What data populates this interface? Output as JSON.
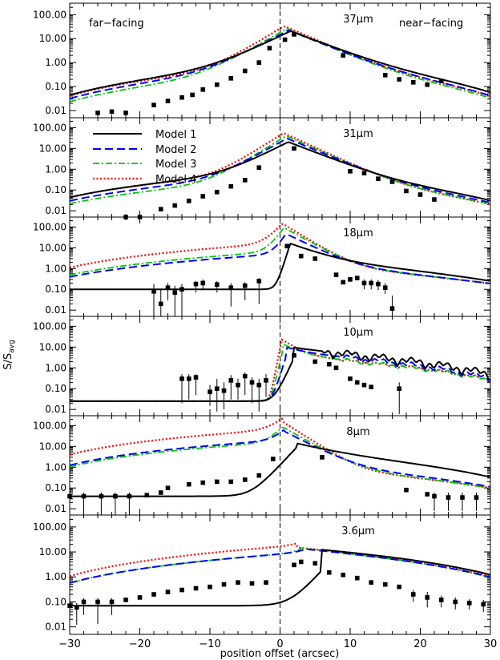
{
  "figure": {
    "annotations": {
      "left": "far−facing",
      "right": "near−facing"
    },
    "ylabel": "S/S",
    "ylabel_sub": "avg",
    "xlabel": "position offset (arcsec)",
    "ytick_labels": [
      "100.00",
      "10.00",
      "1.00",
      "0.10",
      "0.01"
    ],
    "xtick_labels": [
      "−30",
      "−20",
      "−10",
      "0",
      "10",
      "20",
      "30"
    ]
  },
  "chart_data": {
    "type": "line",
    "scale": "log-y",
    "xlim": [
      -30,
      30
    ],
    "ylim": [
      0.005,
      300
    ],
    "legend": [
      {
        "name": "Model 1",
        "color": "#000000",
        "style": "solid"
      },
      {
        "name": "Model 2",
        "color": "#0000ff",
        "style": "dashed"
      },
      {
        "name": "Model 3",
        "color": "#00c800",
        "style": "dash-dot"
      },
      {
        "name": "Model 4",
        "color": "#ff0000",
        "style": "dotted"
      }
    ],
    "panels": [
      {
        "label": "37",
        "unit": "μm",
        "model_params": {
          "m1": {
            "peak": 20,
            "shift": 1.5,
            "wl": 3.0,
            "wr": 3.8,
            "fl": 0.00042,
            "fr": 0.003,
            "base": 0.001
          },
          "m2": {
            "peak": 22,
            "shift": 1.2,
            "wl": 2.8,
            "wr": 3.6,
            "fl": 0.0003,
            "fr": 0.0022,
            "base": 0.001
          },
          "m3": {
            "peak": 26,
            "shift": 1.0,
            "wl": 2.6,
            "wr": 3.4,
            "fl": 0.00022,
            "fr": 0.0018,
            "base": 0.001
          },
          "m4": {
            "peak": 33,
            "shift": 0.6,
            "wl": 2.4,
            "wr": 3.4,
            "fl": 0.0004,
            "fr": 0.0022,
            "base": 0.001
          }
        },
        "obs": [
          {
            "x": -26,
            "y": 0.008
          },
          {
            "x": -24,
            "y": 0.009
          },
          {
            "x": -22,
            "y": 0.008
          },
          {
            "x": -18,
            "y": 0.017
          },
          {
            "x": -16,
            "y": 0.025
          },
          {
            "x": -14,
            "y": 0.035
          },
          {
            "x": -12.5,
            "y": 0.045
          },
          {
            "x": -11,
            "y": 0.075
          },
          {
            "x": -9,
            "y": 0.12
          },
          {
            "x": -7,
            "y": 0.22
          },
          {
            "x": -5,
            "y": 0.45
          },
          {
            "x": -3,
            "y": 1.0
          },
          {
            "x": -1.5,
            "y": 4.0
          },
          {
            "x": 0.7,
            "y": 9.0
          },
          {
            "x": 2,
            "y": 15.0
          },
          {
            "x": 9,
            "y": 2.0
          },
          {
            "x": 15,
            "y": 0.3
          },
          {
            "x": 17,
            "y": 0.2
          },
          {
            "x": 19,
            "y": 0.15
          },
          {
            "x": 21,
            "y": 0.12
          },
          {
            "x": 23,
            "y": 0.17
          }
        ]
      },
      {
        "label": "31",
        "unit": "μm",
        "model_params": {
          "m1": {
            "peak": 20,
            "shift": 1.2,
            "wl": 2.5,
            "wr": 3.3,
            "fl": 0.0004,
            "fr": 0.0016,
            "base": 0.004
          },
          "m2": {
            "peak": 30,
            "shift": 1.0,
            "wl": 2.3,
            "wr": 3.1,
            "fl": 0.00026,
            "fr": 0.0012,
            "base": 0.004
          },
          "m3": {
            "peak": 40,
            "shift": 0.9,
            "wl": 2.1,
            "wr": 2.9,
            "fl": 0.00018,
            "fr": 0.001,
            "base": 0.004
          },
          "m4": {
            "peak": 55,
            "shift": 0.5,
            "wl": 2.0,
            "wr": 2.8,
            "fl": 0.0004,
            "fr": 0.001,
            "base": 0.004
          }
        },
        "obs": [
          {
            "x": -22,
            "y": 0.004
          },
          {
            "x": -20,
            "y": 0.005
          },
          {
            "x": -17,
            "y": 0.012
          },
          {
            "x": -15,
            "y": 0.018
          },
          {
            "x": -13,
            "y": 0.03
          },
          {
            "x": -11,
            "y": 0.05
          },
          {
            "x": -9,
            "y": 0.08
          },
          {
            "x": -7,
            "y": 0.15
          },
          {
            "x": -5,
            "y": 0.3
          },
          {
            "x": -3,
            "y": 1.2
          },
          {
            "x": 2,
            "y": 10.0
          },
          {
            "x": 10,
            "y": 0.8
          },
          {
            "x": 12,
            "y": 0.65
          },
          {
            "x": 14,
            "y": 0.35
          },
          {
            "x": 16,
            "y": 0.25
          },
          {
            "x": 18,
            "y": 0.09
          },
          {
            "x": 20,
            "y": 0.06
          },
          {
            "x": 22,
            "y": 0.035
          }
        ]
      },
      {
        "label": "18",
        "unit": "μm",
        "model_params": {
          "m1": {
            "peak": 14,
            "shift": 1.4,
            "wl": 0.4,
            "wr": 3.2,
            "fl": 0,
            "fr": 0.01,
            "base": 0.1
          },
          "m2": {
            "peak": 45,
            "shift": 0.9,
            "wl": 0.8,
            "wr": 2.6,
            "fl": 0.003,
            "fr": 0.006,
            "base": 0.1
          },
          "m3": {
            "peak": 90,
            "shift": 0.6,
            "wl": 0.9,
            "wr": 2.3,
            "fl": 0.004,
            "fr": 0.006,
            "base": 0.1
          },
          "m4": {
            "peak": 140,
            "shift": 0.4,
            "wl": 1.1,
            "wr": 2.1,
            "fl": 0.01,
            "fr": 0.006,
            "base": 0.1
          }
        },
        "obs": [
          {
            "x": -18,
            "y": 0.08,
            "lo": 0.004,
            "hi": 0.18
          },
          {
            "x": -17,
            "y": 0.02,
            "lo": 0.004,
            "hi": 0.1
          },
          {
            "x": -16,
            "y": 0.12,
            "lo": 0.03,
            "hi": 0.2
          },
          {
            "x": -15,
            "y": 0.07,
            "lo": 0.004,
            "hi": 0.15
          },
          {
            "x": -14,
            "y": 0.1,
            "lo": 0.004,
            "hi": 0.18
          },
          {
            "x": -12,
            "y": 0.18,
            "lo": 0.07,
            "hi": 0.25
          },
          {
            "x": -11,
            "y": 0.2,
            "lo": 0.09,
            "hi": 0.3
          },
          {
            "x": -9,
            "y": 0.17,
            "lo": 0.07,
            "hi": 0.25
          },
          {
            "x": -7,
            "y": 0.12,
            "lo": 0.015,
            "hi": 0.2
          },
          {
            "x": -5,
            "y": 0.15,
            "lo": 0.03,
            "hi": 0.22
          },
          {
            "x": -3,
            "y": 0.25,
            "lo": 0.02,
            "hi": 0.35
          },
          {
            "x": 1,
            "y": 12.0
          },
          {
            "x": 3,
            "y": 4.0
          },
          {
            "x": 5,
            "y": 3.0
          },
          {
            "x": 8,
            "y": 0.5
          },
          {
            "x": 9,
            "y": 0.22
          },
          {
            "x": 10,
            "y": 0.3
          },
          {
            "x": 11,
            "y": 0.35
          },
          {
            "x": 12,
            "y": 0.2,
            "lo": 0.1,
            "hi": 0.3
          },
          {
            "x": 13,
            "y": 0.2,
            "lo": 0.1,
            "hi": 0.3
          },
          {
            "x": 14,
            "y": 0.18,
            "lo": 0.09,
            "hi": 0.28
          },
          {
            "x": 15,
            "y": 0.12,
            "lo": 0.06,
            "hi": 0.2
          },
          {
            "x": 16,
            "y": 0.012,
            "lo": 0.007,
            "hi": 0.05
          }
        ]
      },
      {
        "label": "10",
        "unit": "μm",
        "model_params": {
          "m1": {
            "peak": 3,
            "shift": 2.0,
            "wl": 0.6,
            "wr": 4.2,
            "fl": 0,
            "fr": 0.03,
            "base": 0.025,
            "noise": 0.5,
            "noiseStart": 6
          },
          "m2": {
            "peak": 5,
            "shift": 1.0,
            "wl": 0.4,
            "wr": 3.0,
            "fl": 0,
            "fr": 0.02,
            "base": 0.025,
            "noise": 0.35,
            "noiseStart": 8
          },
          "m3": {
            "peak": 10,
            "shift": 0.5,
            "wl": 0.3,
            "wr": 2.2,
            "fl": 0,
            "fr": 0.015,
            "base": 0.025,
            "noise": 0.25,
            "noiseStart": 8
          },
          "m4": {
            "peak": 20,
            "shift": 0.2,
            "wl": 0.25,
            "wr": 1.8,
            "fl": 0,
            "fr": 0.015,
            "base": 0.025,
            "noise": 0.2,
            "noiseStart": 8
          }
        },
        "obs": [
          {
            "x": -14,
            "y": 0.3,
            "lo": 0.02,
            "hi": 0.5
          },
          {
            "x": -13,
            "y": 0.3,
            "lo": 0.03,
            "hi": 0.5
          },
          {
            "x": -12,
            "y": 0.35,
            "lo": 0.05,
            "hi": 0.5
          },
          {
            "x": -10,
            "y": 0.07,
            "lo": 0.015,
            "hi": 0.15
          },
          {
            "x": -9,
            "y": 0.1,
            "lo": 0.008,
            "hi": 0.3
          },
          {
            "x": -8,
            "y": 0.08,
            "lo": 0.01,
            "hi": 0.2
          },
          {
            "x": -7,
            "y": 0.25,
            "lo": 0.03,
            "hi": 0.45
          },
          {
            "x": -6,
            "y": 0.15,
            "lo": 0.03,
            "hi": 0.3
          },
          {
            "x": -5,
            "y": 0.4,
            "lo": 0.05,
            "hi": 0.6
          },
          {
            "x": -4,
            "y": 0.2,
            "lo": 0.02,
            "hi": 0.35
          },
          {
            "x": -3,
            "y": 0.15,
            "lo": 0.008,
            "hi": 0.3
          },
          {
            "x": -2,
            "y": 0.25,
            "lo": 0.04,
            "hi": 0.5
          },
          {
            "x": 2,
            "y": 4.0
          },
          {
            "x": 5,
            "y": 2.0
          },
          {
            "x": 7,
            "y": 1.5
          },
          {
            "x": 8,
            "y": 1.0
          },
          {
            "x": 10,
            "y": 0.3
          },
          {
            "x": 11,
            "y": 0.2
          },
          {
            "x": 12,
            "y": 0.15
          },
          {
            "x": 13,
            "y": 0.12
          },
          {
            "x": 17,
            "y": 0.1,
            "lo": 0.006,
            "hi": 0.2
          }
        ]
      },
      {
        "label": "8",
        "unit": "μm",
        "model_params": {
          "m1": {
            "peak": 10,
            "shift": 2.5,
            "wl": 1.2,
            "wr": 4.5,
            "fl": 0,
            "fr": 0.018,
            "base": 0.04
          },
          "m2": {
            "peak": 50,
            "shift": 0.7,
            "wl": 1.1,
            "wr": 2.5,
            "fl": 0.012,
            "fr": 0.005,
            "base": 0.04
          },
          "m3": {
            "peak": 80,
            "shift": 0.5,
            "wl": 1.1,
            "wr": 2.3,
            "fl": 0.01,
            "fr": 0.004,
            "base": 0.04
          },
          "m4": {
            "peak": 160,
            "shift": 0.3,
            "wl": 1.3,
            "wr": 2.0,
            "fl": 0.04,
            "fr": 0.004,
            "base": 0.04
          }
        },
        "obs": [
          {
            "x": -30,
            "y": 0.04,
            "lo": 0.004,
            "hi": 0.06
          },
          {
            "x": -28,
            "y": 0.04,
            "lo": 0.004,
            "hi": 0.06
          },
          {
            "x": -25.5,
            "y": 0.04,
            "lo": 0.004,
            "hi": 0.06
          },
          {
            "x": -23.5,
            "y": 0.04,
            "lo": 0.004,
            "hi": 0.06
          },
          {
            "x": -21.5,
            "y": 0.04,
            "lo": 0.004,
            "hi": 0.06
          },
          {
            "x": -19,
            "y": 0.045
          },
          {
            "x": -17,
            "y": 0.06
          },
          {
            "x": -16,
            "y": 0.1
          },
          {
            "x": -13,
            "y": 0.15
          },
          {
            "x": -11,
            "y": 0.18
          },
          {
            "x": -9,
            "y": 0.2
          },
          {
            "x": -7,
            "y": 0.2
          },
          {
            "x": -5,
            "y": 0.25
          },
          {
            "x": -3,
            "y": 0.4
          },
          {
            "x": -1,
            "y": 2.5
          },
          {
            "x": 6,
            "y": 3.0
          },
          {
            "x": 18,
            "y": 0.08
          },
          {
            "x": 21,
            "y": 0.05
          },
          {
            "x": 22,
            "y": 0.04,
            "lo": 0.008,
            "hi": 0.06
          },
          {
            "x": 24,
            "y": 0.035,
            "lo": 0.008,
            "hi": 0.06
          },
          {
            "x": 26,
            "y": 0.035,
            "lo": 0.008,
            "hi": 0.06
          },
          {
            "x": 28,
            "y": 0.035,
            "lo": 0.008,
            "hi": 0.06
          }
        ]
      },
      {
        "label": "3.6",
        "unit": "μm",
        "model_params": {
          "m1": {
            "peak": 1.8,
            "shift": 6.0,
            "wl": 1.4,
            "wr": 12,
            "fl": 0,
            "fr": 0.06,
            "base": 0.07
          },
          "m2": {
            "peak": 3.0,
            "shift": 3.5,
            "wl": 1.3,
            "wr": 9,
            "fl": 0.005,
            "fr": 0.05,
            "base": 0.07
          },
          "m3": {
            "peak": 4.0,
            "shift": 3.0,
            "wl": 1.1,
            "wr": 7.5,
            "fl": 0.005,
            "fr": 0.05,
            "base": 0.07
          },
          "m4": {
            "peak": 4.5,
            "shift": 2.5,
            "wl": 1.3,
            "wr": 9,
            "fl": 0.01,
            "fr": 0.05,
            "base": 0.07
          }
        },
        "obs": [
          {
            "x": -30,
            "y": 0.07,
            "lo": 0.006,
            "hi": 0.1
          },
          {
            "x": -29,
            "y": 0.06,
            "lo": 0.012,
            "hi": 0.09
          },
          {
            "x": -28,
            "y": 0.1,
            "lo": 0.03,
            "hi": 0.14
          },
          {
            "x": -26,
            "y": 0.1,
            "lo": 0.013,
            "hi": 0.14
          },
          {
            "x": -24,
            "y": 0.1,
            "lo": 0.03,
            "hi": 0.14
          },
          {
            "x": -22,
            "y": 0.12
          },
          {
            "x": -20,
            "y": 0.15
          },
          {
            "x": -18,
            "y": 0.2
          },
          {
            "x": -16,
            "y": 0.25
          },
          {
            "x": -14,
            "y": 0.3
          },
          {
            "x": -12,
            "y": 0.35
          },
          {
            "x": -10,
            "y": 0.4
          },
          {
            "x": -8,
            "y": 0.5
          },
          {
            "x": -6,
            "y": 0.6
          },
          {
            "x": -4,
            "y": 0.55
          },
          {
            "x": -2,
            "y": 0.6
          },
          {
            "x": 2,
            "y": 3.0
          },
          {
            "x": 3,
            "y": 4.0
          },
          {
            "x": 5,
            "y": 3.5
          },
          {
            "x": 7,
            "y": 1.5
          },
          {
            "x": 9,
            "y": 1.2
          },
          {
            "x": 11,
            "y": 0.9
          },
          {
            "x": 13,
            "y": 0.6
          },
          {
            "x": 15,
            "y": 0.5
          },
          {
            "x": 17,
            "y": 0.4
          },
          {
            "x": 19,
            "y": 0.2,
            "lo": 0.1,
            "hi": 0.3
          },
          {
            "x": 21,
            "y": 0.15,
            "lo": 0.06,
            "hi": 0.25
          },
          {
            "x": 23,
            "y": 0.12,
            "lo": 0.06,
            "hi": 0.18
          },
          {
            "x": 25,
            "y": 0.1,
            "lo": 0.05,
            "hi": 0.15
          },
          {
            "x": 27,
            "y": 0.09,
            "lo": 0.05,
            "hi": 0.13
          },
          {
            "x": 29,
            "y": 0.08,
            "lo": 0.04,
            "hi": 0.12
          }
        ]
      }
    ]
  }
}
